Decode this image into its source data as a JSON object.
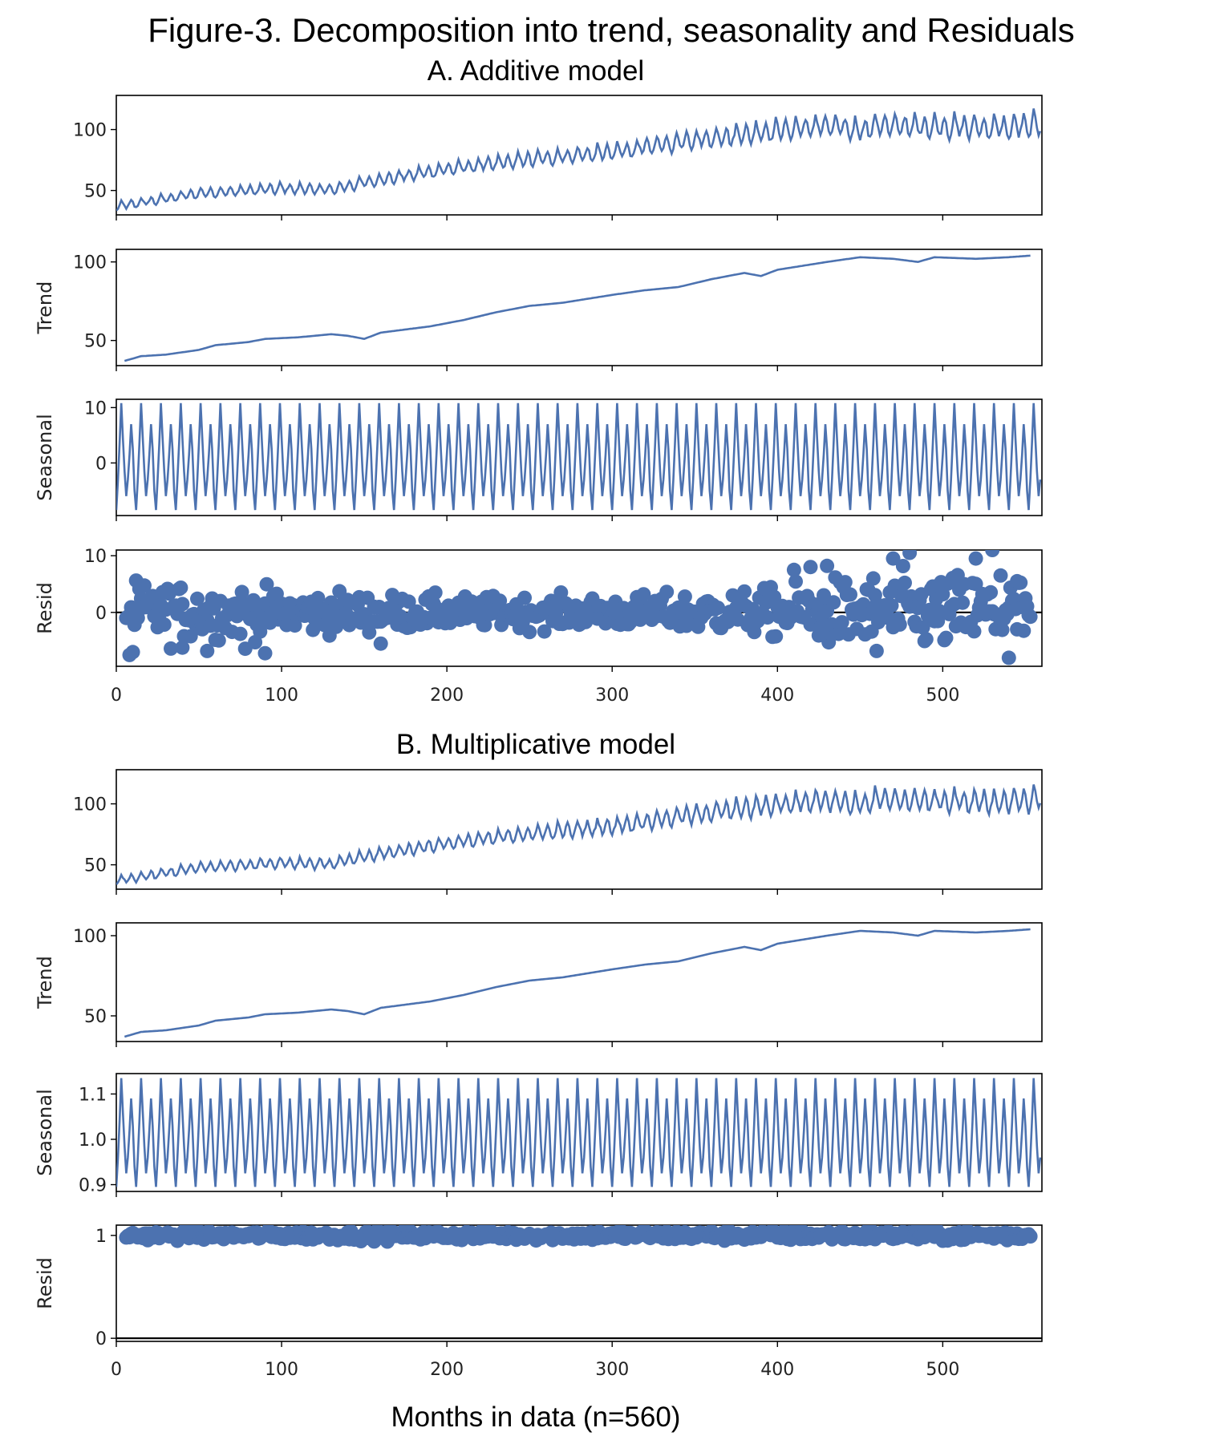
{
  "title": "Figure-3. Decomposition into trend, seasonality and Residuals",
  "x_axis_label": "Months in data (n=560)",
  "colors": {
    "series": "#4c72b0",
    "zero_line": "#000000"
  },
  "chart_data": [
    {
      "model": "A. Additive model",
      "panels": [
        {
          "type": "line",
          "component": "observed",
          "ylabel": "",
          "xlim": [
            0,
            560
          ],
          "ylim": [
            30,
            128
          ],
          "xticks": [
            0,
            100,
            200,
            300,
            400,
            500
          ],
          "yticks": [
            50,
            100
          ],
          "series": [
            {
              "x_start": 0,
              "x_end": 559,
              "trend_knots": [
                [
                  0,
                  37
                ],
                [
                  50,
                  48
                ],
                [
                  100,
                  52
                ],
                [
                  130,
                  51
                ],
                [
                  150,
                  57
                ],
                [
                  200,
                  68
                ],
                [
                  250,
                  76
                ],
                [
                  300,
                  82
                ],
                [
                  350,
                  92
                ],
                [
                  400,
                  100
                ],
                [
                  430,
                  104
                ],
                [
                  450,
                  100
                ],
                [
                  460,
                  104
                ],
                [
                  500,
                  103
                ],
                [
                  540,
                  102
                ],
                [
                  559,
                  105
                ]
              ],
              "season_period": 12,
              "season_amplitude": [
                [
                  0,
                  4
                ],
                [
                  200,
                  6
                ],
                [
                  400,
                  10
                ],
                [
                  559,
                  12
                ]
              ]
            }
          ]
        },
        {
          "type": "line",
          "component": "trend",
          "ylabel": "Trend",
          "xlim": [
            0,
            560
          ],
          "ylim": [
            34,
            108
          ],
          "xticks": [
            0,
            100,
            200,
            300,
            400,
            500
          ],
          "yticks": [
            50,
            100
          ],
          "series": [
            {
              "x_start": 5,
              "x_end": 553,
              "trend_knots": [
                [
                  5,
                  37
                ],
                [
                  15,
                  40
                ],
                [
                  30,
                  41
                ],
                [
                  50,
                  44
                ],
                [
                  60,
                  47
                ],
                [
                  80,
                  49
                ],
                [
                  90,
                  51
                ],
                [
                  110,
                  52
                ],
                [
                  130,
                  54
                ],
                [
                  140,
                  53
                ],
                [
                  150,
                  51
                ],
                [
                  160,
                  55
                ],
                [
                  190,
                  59
                ],
                [
                  210,
                  63
                ],
                [
                  230,
                  68
                ],
                [
                  250,
                  72
                ],
                [
                  270,
                  74
                ],
                [
                  300,
                  79
                ],
                [
                  320,
                  82
                ],
                [
                  340,
                  84
                ],
                [
                  360,
                  89
                ],
                [
                  380,
                  93
                ],
                [
                  390,
                  91
                ],
                [
                  400,
                  95
                ],
                [
                  430,
                  100
                ],
                [
                  450,
                  103
                ],
                [
                  470,
                  102
                ],
                [
                  485,
                  100
                ],
                [
                  495,
                  103
                ],
                [
                  520,
                  102
                ],
                [
                  540,
                  103
                ],
                [
                  553,
                  104
                ]
              ]
            }
          ]
        },
        {
          "type": "line",
          "component": "seasonal",
          "ylabel": "Seasonal",
          "xlim": [
            0,
            560
          ],
          "ylim": [
            -9.5,
            11.5
          ],
          "xticks": [
            0,
            100,
            200,
            300,
            400,
            500
          ],
          "yticks": [
            0,
            10
          ],
          "series": [
            {
              "x_start": 0,
              "x_end": 559,
              "period": 12,
              "cycle": [
                -8.5,
                -3.0,
                3.5,
                10.8,
                4.5,
                -1.5,
                -6.0,
                -3.0,
                1.5,
                7.0,
                2.5,
                -5.0
              ]
            }
          ]
        },
        {
          "type": "scatter",
          "component": "resid",
          "ylabel": "Resid",
          "xlim": [
            0,
            560
          ],
          "ylim": [
            -9.5,
            11
          ],
          "xticks": [
            0,
            100,
            200,
            300,
            400,
            500
          ],
          "xtick_labels": [
            "0",
            "100",
            "200",
            "300",
            "400",
            "500"
          ],
          "yticks": [
            0,
            10
          ],
          "zero_line": 0,
          "series": [
            {
              "x_start": 6,
              "x_end": 553,
              "spread": [
                [
                  6,
                  5
                ],
                [
                  100,
                  3.5
                ],
                [
                  200,
                  2.5
                ],
                [
                  300,
                  2.5
                ],
                [
                  390,
                  3.5
                ],
                [
                  420,
                  5
                ],
                [
                  470,
                  6
                ],
                [
                  553,
                  6
                ]
              ],
              "outliers": [
                [
                  8,
                  -7.5
                ],
                [
                  10,
                  -7.0
                ],
                [
                  40,
                  -6.2
                ],
                [
                  55,
                  -6.8
                ],
                [
                  78,
                  -6.4
                ],
                [
                  90,
                  -7.2
                ],
                [
                  160,
                  -5.5
                ],
                [
                  410,
                  7.5
                ],
                [
                  420,
                  8.0
                ],
                [
                  430,
                  8.2
                ],
                [
                  470,
                  9.5
                ],
                [
                  480,
                  10.5
                ],
                [
                  520,
                  9.5
                ],
                [
                  530,
                  11.0
                ],
                [
                  540,
                  -8.0
                ],
                [
                  535,
                  6.5
                ],
                [
                  545,
                  5.5
                ],
                [
                  460,
                  -6.8
                ]
              ]
            }
          ]
        }
      ]
    },
    {
      "model": "B. Multiplicative model",
      "panels": [
        {
          "type": "line",
          "component": "observed",
          "ylabel": "",
          "xlim": [
            0,
            560
          ],
          "ylim": [
            30,
            128
          ],
          "xticks": [
            0,
            100,
            200,
            300,
            400,
            500
          ],
          "yticks": [
            50,
            100
          ],
          "series": [
            {
              "x_start": 0,
              "x_end": 559,
              "trend_knots": [
                [
                  0,
                  37
                ],
                [
                  50,
                  48
                ],
                [
                  100,
                  52
                ],
                [
                  130,
                  51
                ],
                [
                  150,
                  57
                ],
                [
                  200,
                  68
                ],
                [
                  250,
                  76
                ],
                [
                  300,
                  82
                ],
                [
                  350,
                  92
                ],
                [
                  400,
                  100
                ],
                [
                  430,
                  104
                ],
                [
                  450,
                  100
                ],
                [
                  460,
                  104
                ],
                [
                  500,
                  103
                ],
                [
                  540,
                  102
                ],
                [
                  559,
                  105
                ]
              ],
              "season_period": 12,
              "season_amplitude": [
                [
                  0,
                  4
                ],
                [
                  200,
                  6
                ],
                [
                  400,
                  10
                ],
                [
                  559,
                  12
                ]
              ]
            }
          ]
        },
        {
          "type": "line",
          "component": "trend",
          "ylabel": "Trend",
          "xlim": [
            0,
            560
          ],
          "ylim": [
            34,
            108
          ],
          "xticks": [
            0,
            100,
            200,
            300,
            400,
            500
          ],
          "yticks": [
            50,
            100
          ],
          "series": [
            {
              "x_start": 5,
              "x_end": 553,
              "trend_knots": [
                [
                  5,
                  37
                ],
                [
                  15,
                  40
                ],
                [
                  30,
                  41
                ],
                [
                  50,
                  44
                ],
                [
                  60,
                  47
                ],
                [
                  80,
                  49
                ],
                [
                  90,
                  51
                ],
                [
                  110,
                  52
                ],
                [
                  130,
                  54
                ],
                [
                  140,
                  53
                ],
                [
                  150,
                  51
                ],
                [
                  160,
                  55
                ],
                [
                  190,
                  59
                ],
                [
                  210,
                  63
                ],
                [
                  230,
                  68
                ],
                [
                  250,
                  72
                ],
                [
                  270,
                  74
                ],
                [
                  300,
                  79
                ],
                [
                  320,
                  82
                ],
                [
                  340,
                  84
                ],
                [
                  360,
                  89
                ],
                [
                  380,
                  93
                ],
                [
                  390,
                  91
                ],
                [
                  400,
                  95
                ],
                [
                  430,
                  100
                ],
                [
                  450,
                  103
                ],
                [
                  470,
                  102
                ],
                [
                  485,
                  100
                ],
                [
                  495,
                  103
                ],
                [
                  520,
                  102
                ],
                [
                  540,
                  103
                ],
                [
                  553,
                  104
                ]
              ]
            }
          ]
        },
        {
          "type": "line",
          "component": "seasonal",
          "ylabel": "Seasonal",
          "xlim": [
            0,
            560
          ],
          "ylim": [
            0.885,
            1.145
          ],
          "xticks": [
            0,
            100,
            200,
            300,
            400,
            500
          ],
          "yticks": [
            0.9,
            1.0,
            1.1
          ],
          "ytick_labels": [
            "0.9",
            "1.0",
            "1.1"
          ],
          "series": [
            {
              "x_start": 0,
              "x_end": 559,
              "period": 12,
              "cycle": [
                0.895,
                0.96,
                1.04,
                1.135,
                1.06,
                0.985,
                0.925,
                0.96,
                1.02,
                1.09,
                1.03,
                0.94
              ]
            }
          ]
        },
        {
          "type": "scatter",
          "component": "resid",
          "ylabel": "Resid",
          "xlim": [
            0,
            560
          ],
          "ylim": [
            -0.03,
            1.1
          ],
          "xticks": [
            0,
            100,
            200,
            300,
            400,
            500
          ],
          "xtick_labels": [
            "0",
            "100",
            "200",
            "300",
            "400",
            "500"
          ],
          "yticks": [
            0,
            1
          ],
          "zero_line": 0,
          "series": [
            {
              "x_start": 6,
              "x_end": 553,
              "center": 1.0,
              "spread": [
                [
                  6,
                  0.04
                ],
                [
                  553,
                  0.05
                ]
              ]
            }
          ]
        }
      ]
    }
  ]
}
